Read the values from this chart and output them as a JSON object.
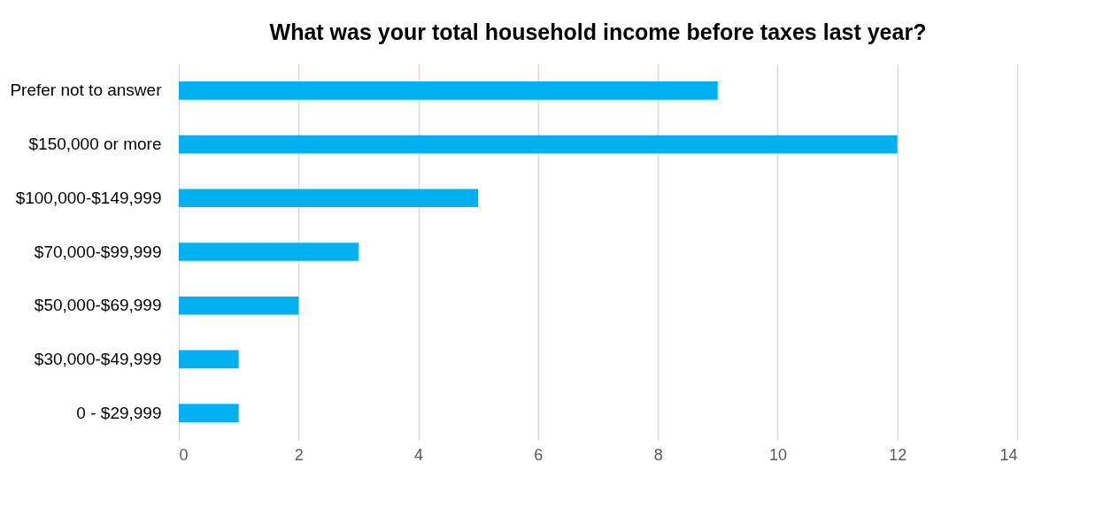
{
  "chart_data": {
    "type": "bar",
    "orientation": "horizontal",
    "title": "What was your total household income before taxes last year?",
    "categories": [
      "Prefer not to answer",
      "$150,000 or more",
      "$100,000-$149,999",
      "$70,000-$99,999",
      "$50,000-$69,999",
      "$30,000-$49,999",
      "0 - $29,999"
    ],
    "values": [
      9,
      12,
      5,
      3,
      2,
      1,
      1
    ],
    "color": "#00b0f0",
    "xlim": [
      0,
      14
    ],
    "xticks": [
      0,
      2,
      4,
      6,
      8,
      10,
      12,
      14
    ],
    "grid": "x"
  }
}
